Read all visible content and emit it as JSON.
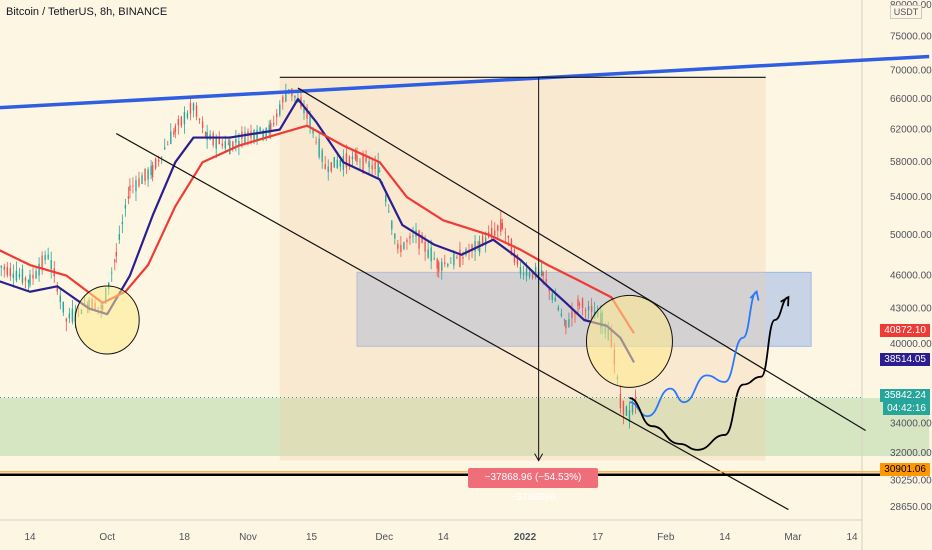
{
  "header": {
    "title": "Bitcoin / TetherUS, 8h, BINANCE",
    "currency_badge": "USDT"
  },
  "colors": {
    "background": "#fdf6e3",
    "bull": "#26a69a",
    "bear": "#ef5350",
    "ema_fast": "#2b1f8f",
    "ema_slow": "#ef3b36",
    "trend": "#2f5ee0",
    "green_zone": "#4caf50",
    "blue_zone": "#9cb8e8",
    "projection_blue": "#2979ff",
    "projection_black": "#000000"
  },
  "chart_data": {
    "type": "candlestick",
    "title": "Bitcoin / TetherUS, 8h, BINANCE",
    "y_scale": "log",
    "ylim": [
      27000,
      80000
    ],
    "y_ticks": [
      80000,
      75000,
      70000,
      66000,
      62000,
      58000,
      54000,
      50000,
      46000,
      43000,
      40000,
      34000,
      32000,
      30250,
      28650
    ],
    "x_ticks": [
      "14",
      "Oct",
      "18",
      "Nov",
      "15",
      "Dec",
      "14",
      "2022",
      "17",
      "Feb",
      "14",
      "Mar",
      "14"
    ],
    "x_tick_dates": [
      "2021-09-14",
      "2021-10-01",
      "2021-10-18",
      "2021-11-01",
      "2021-11-15",
      "2021-12-01",
      "2021-12-14",
      "2022-01-01",
      "2022-01-17",
      "2022-02-01",
      "2022-02-14",
      "2022-03-01",
      "2022-03-14"
    ],
    "price_path": [
      [
        "2021-09-07",
        47000
      ],
      [
        "2021-09-14",
        45500
      ],
      [
        "2021-09-18",
        48000
      ],
      [
        "2021-09-22",
        42000
      ],
      [
        "2021-09-27",
        43500
      ],
      [
        "2021-09-30",
        43000
      ],
      [
        "2021-10-03",
        48000
      ],
      [
        "2021-10-06",
        55000
      ],
      [
        "2021-10-11",
        57000
      ],
      [
        "2021-10-16",
        62000
      ],
      [
        "2021-10-20",
        65000
      ],
      [
        "2021-10-23",
        61000
      ],
      [
        "2021-10-28",
        60000
      ],
      [
        "2021-11-01",
        61500
      ],
      [
        "2021-11-06",
        62000
      ],
      [
        "2021-11-10",
        67500
      ],
      [
        "2021-11-14",
        64000
      ],
      [
        "2021-11-18",
        57500
      ],
      [
        "2021-11-25",
        58500
      ],
      [
        "2021-11-30",
        57000
      ],
      [
        "2021-12-04",
        48500
      ],
      [
        "2021-12-08",
        50000
      ],
      [
        "2021-12-13",
        47000
      ],
      [
        "2021-12-17",
        47500
      ],
      [
        "2021-12-22",
        49000
      ],
      [
        "2021-12-27",
        51000
      ],
      [
        "2021-12-31",
        46500
      ],
      [
        "2022-01-05",
        46000
      ],
      [
        "2022-01-10",
        41500
      ],
      [
        "2022-01-13",
        43500
      ],
      [
        "2022-01-18",
        42000
      ],
      [
        "2022-01-20",
        40500
      ],
      [
        "2022-01-22",
        35500
      ],
      [
        "2022-01-24",
        34500
      ],
      [
        "2022-01-26",
        35842
      ]
    ],
    "series": [
      {
        "name": "",
        "kind": "ema_fast",
        "values": [
          [
            "2021-09-07",
            45500
          ],
          [
            "2021-09-14",
            44500
          ],
          [
            "2021-09-20",
            45000
          ],
          [
            "2021-09-27",
            43000
          ],
          [
            "2021-10-01",
            42500
          ],
          [
            "2021-10-06",
            46000
          ],
          [
            "2021-10-11",
            52000
          ],
          [
            "2021-10-16",
            58000
          ],
          [
            "2021-10-20",
            61000
          ],
          [
            "2021-10-28",
            61000
          ],
          [
            "2021-11-08",
            62000
          ],
          [
            "2021-11-12",
            66000
          ],
          [
            "2021-11-16",
            63000
          ],
          [
            "2021-11-22",
            58000
          ],
          [
            "2021-11-30",
            56000
          ],
          [
            "2021-12-05",
            51000
          ],
          [
            "2021-12-12",
            49000
          ],
          [
            "2021-12-18",
            48000
          ],
          [
            "2021-12-25",
            49500
          ],
          [
            "2021-12-31",
            47500
          ],
          [
            "2022-01-06",
            45000
          ],
          [
            "2022-01-10",
            43500
          ],
          [
            "2022-01-14",
            42000
          ],
          [
            "2022-01-19",
            41500
          ],
          [
            "2022-01-22",
            40500
          ],
          [
            "2022-01-25",
            38514
          ]
        ]
      },
      {
        "name": "",
        "kind": "ema_slow",
        "values": [
          [
            "2021-09-07",
            48500
          ],
          [
            "2021-09-14",
            47000
          ],
          [
            "2021-09-22",
            46000
          ],
          [
            "2021-09-30",
            43500
          ],
          [
            "2021-10-05",
            44500
          ],
          [
            "2021-10-10",
            47000
          ],
          [
            "2021-10-16",
            53000
          ],
          [
            "2021-10-22",
            58000
          ],
          [
            "2021-10-30",
            60000
          ],
          [
            "2021-11-08",
            61500
          ],
          [
            "2021-11-14",
            62500
          ],
          [
            "2021-11-22",
            60000
          ],
          [
            "2021-11-30",
            58000
          ],
          [
            "2021-12-06",
            54000
          ],
          [
            "2021-12-14",
            51500
          ],
          [
            "2021-12-24",
            50000
          ],
          [
            "2021-12-31",
            48500
          ],
          [
            "2022-01-06",
            47000
          ],
          [
            "2022-01-13",
            45500
          ],
          [
            "2022-01-20",
            44000
          ],
          [
            "2022-01-25",
            40872
          ]
        ]
      }
    ],
    "trendlines": [
      {
        "kind": "resistance",
        "from": [
          "2021-08-28",
          64500
        ],
        "to": [
          "2022-03-31",
          72000
        ]
      },
      {
        "kind": "channel_upper",
        "from": [
          "2021-11-12",
          67500
        ],
        "to": [
          "2022-03-17",
          33500
        ]
      },
      {
        "kind": "channel_lower",
        "from": [
          "2021-10-03",
          61500
        ],
        "to": [
          "2022-02-28",
          28500
        ]
      },
      {
        "kind": "range_top",
        "from": [
          "2021-11-08",
          69000
        ],
        "to": [
          "2022-02-23",
          69000
        ]
      },
      {
        "kind": "support",
        "from": [
          "2021-08-28",
          30600
        ],
        "to": [
          "2022-03-31",
          30600
        ]
      }
    ],
    "zones": [
      {
        "kind": "blue_box",
        "x": [
          "2021-11-25",
          "2022-03-05"
        ],
        "y": [
          39800,
          46300
        ]
      },
      {
        "kind": "green_box",
        "x": [
          "2021-08-28",
          "2022-03-31"
        ],
        "y": [
          31800,
          35800
        ]
      },
      {
        "kind": "measure_box",
        "x": [
          "2021-11-08",
          "2022-02-23"
        ],
        "y": [
          31500,
          69000
        ]
      }
    ],
    "circles": [
      {
        "center": [
          "2021-10-01",
          42000
        ]
      },
      {
        "center": [
          "2022-01-24",
          40200
        ]
      }
    ],
    "projections": [
      {
        "kind": "blue",
        "points": [
          [
            "2022-01-24",
            35500
          ],
          [
            "2022-01-28",
            34500
          ],
          [
            "2022-02-02",
            36500
          ],
          [
            "2022-02-05",
            35500
          ],
          [
            "2022-02-10",
            37500
          ],
          [
            "2022-02-14",
            37000
          ],
          [
            "2022-02-18",
            40500
          ],
          [
            "2022-02-21",
            44500
          ]
        ]
      },
      {
        "kind": "black",
        "points": [
          [
            "2022-01-24",
            35800
          ],
          [
            "2022-01-29",
            33800
          ],
          [
            "2022-02-04",
            32600
          ],
          [
            "2022-02-08",
            32200
          ],
          [
            "2022-02-14",
            33200
          ],
          [
            "2022-02-18",
            36800
          ],
          [
            "2022-02-22",
            37400
          ],
          [
            "2022-02-25",
            42000
          ],
          [
            "2022-02-28",
            44000
          ]
        ]
      }
    ],
    "measure": {
      "from_date": "2022-01-04",
      "top": 69000,
      "bottom": 31500
    }
  },
  "price_tags": [
    {
      "value": "40872.10",
      "bg": "#ef3b36",
      "fg": "#ffffff"
    },
    {
      "value": "38514.05",
      "bg": "#2b1f8f",
      "fg": "#ffffff"
    },
    {
      "value": "35842.24",
      "bg": "#26a69a",
      "fg": "#ffffff"
    },
    {
      "value": "04:42:16",
      "bg": "#26a69a",
      "fg": "#ffffff"
    },
    {
      "value": "30901.06",
      "bg": "#ff9800",
      "fg": "#000000"
    }
  ],
  "measure_label": "−37868.96 (−54.53%) −3786896"
}
